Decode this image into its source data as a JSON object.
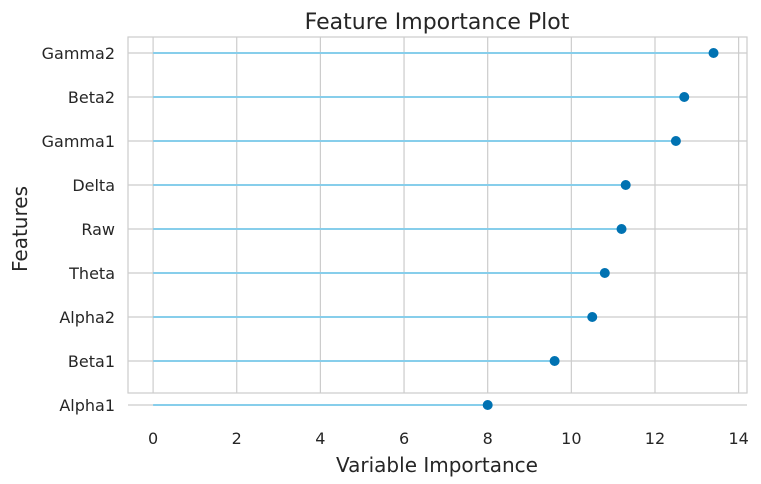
{
  "chart_data": {
    "type": "lollipop",
    "title": "Feature Importance Plot",
    "xlabel": "Variable Importance",
    "ylabel": "Features",
    "xlim": [
      -0.6,
      14.2
    ],
    "xticks": [
      0,
      2,
      4,
      6,
      8,
      10,
      12,
      14
    ],
    "grid": true,
    "categories": [
      "Gamma2",
      "Beta2",
      "Gamma1",
      "Delta",
      "Raw",
      "Theta",
      "Alpha2",
      "Beta1",
      "Alpha1"
    ],
    "values": [
      13.4,
      12.7,
      12.5,
      11.3,
      11.2,
      10.8,
      10.5,
      9.6,
      8.0
    ],
    "colors": {
      "stem": "#87CEEB",
      "marker": "#0072B2",
      "grid": "#cccccc",
      "frame": "#cccccc"
    }
  }
}
